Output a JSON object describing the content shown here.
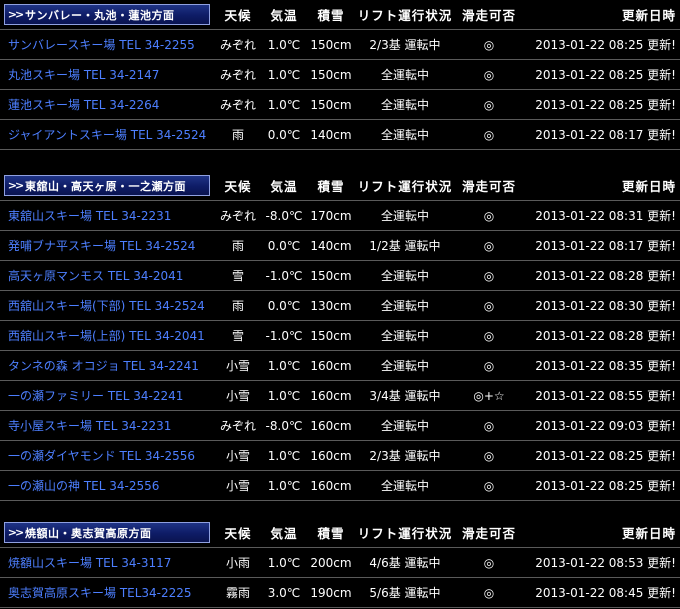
{
  "columns": {
    "weather": "天候",
    "temp": "気温",
    "snow": "積雪",
    "lift": "リフト運行状況",
    "ski": "滑走可否",
    "updated": "更新日時"
  },
  "sections": [
    {
      "title": "サンバレー・丸池・蓮池方面",
      "rows": [
        {
          "name": "サンバレースキー場 TEL 34-2255",
          "weather": "みぞれ",
          "temp": "1.0℃",
          "snow": "150cm",
          "lift": "2/3基 運転中",
          "ski": "◎",
          "updated": "2013-01-22 08:25 更新!"
        },
        {
          "name": "丸池スキー場 TEL 34-2147",
          "weather": "みぞれ",
          "temp": "1.0℃",
          "snow": "150cm",
          "lift": "全運転中",
          "ski": "◎",
          "updated": "2013-01-22 08:25 更新!"
        },
        {
          "name": "蓮池スキー場 TEL 34-2264",
          "weather": "みぞれ",
          "temp": "1.0℃",
          "snow": "150cm",
          "lift": "全運転中",
          "ski": "◎",
          "updated": "2013-01-22 08:25 更新!"
        },
        {
          "name": "ジャイアントスキー場 TEL 34-2524",
          "weather": "雨",
          "temp": "0.0℃",
          "snow": "140cm",
          "lift": "全運転中",
          "ski": "◎",
          "updated": "2013-01-22 08:17 更新!"
        }
      ]
    },
    {
      "title": "東舘山・高天ヶ原・一之瀬方面",
      "rows": [
        {
          "name": "東舘山スキー場 TEL 34-2231",
          "weather": "みぞれ",
          "temp": "-8.0℃",
          "snow": "170cm",
          "lift": "全運転中",
          "ski": "◎",
          "updated": "2013-01-22 08:31 更新!"
        },
        {
          "name": "発哺ブナ平スキー場 TEL 34-2524",
          "weather": "雨",
          "temp": "0.0℃",
          "snow": "140cm",
          "lift": "1/2基 運転中",
          "ski": "◎",
          "updated": "2013-01-22 08:17 更新!"
        },
        {
          "name": "高天ヶ原マンモス TEL 34-2041",
          "weather": "雪",
          "temp": "-1.0℃",
          "snow": "150cm",
          "lift": "全運転中",
          "ski": "◎",
          "updated": "2013-01-22 08:28 更新!"
        },
        {
          "name": "西舘山スキー場(下部) TEL 34-2524",
          "weather": "雨",
          "temp": "0.0℃",
          "snow": "130cm",
          "lift": "全運転中",
          "ski": "◎",
          "updated": "2013-01-22 08:30 更新!"
        },
        {
          "name": "西舘山スキー場(上部) TEL 34-2041",
          "weather": "雪",
          "temp": "-1.0℃",
          "snow": "150cm",
          "lift": "全運転中",
          "ski": "◎",
          "updated": "2013-01-22 08:28 更新!"
        },
        {
          "name": "タンネの森 オコジョ TEL 34-2241",
          "weather": "小雪",
          "temp": "1.0℃",
          "snow": "160cm",
          "lift": "全運転中",
          "ski": "◎",
          "updated": "2013-01-22 08:35 更新!"
        },
        {
          "name": "一の瀬ファミリー TEL 34-2241",
          "weather": "小雪",
          "temp": "1.0℃",
          "snow": "160cm",
          "lift": "3/4基 運転中",
          "ski": "◎+☆",
          "updated": "2013-01-22 08:55 更新!"
        },
        {
          "name": "寺小屋スキー場 TEL 34-2231",
          "weather": "みぞれ",
          "temp": "-8.0℃",
          "snow": "160cm",
          "lift": "全運転中",
          "ski": "◎",
          "updated": "2013-01-22 09:03 更新!"
        },
        {
          "name": "一の瀬ダイヤモンド TEL 34-2556",
          "weather": "小雪",
          "temp": "1.0℃",
          "snow": "160cm",
          "lift": "2/3基 運転中",
          "ski": "◎",
          "updated": "2013-01-22 08:25 更新!"
        },
        {
          "name": "一の瀬山の神 TEL 34-2556",
          "weather": "小雪",
          "temp": "1.0℃",
          "snow": "160cm",
          "lift": "全運転中",
          "ski": "◎",
          "updated": "2013-01-22 08:25 更新!"
        }
      ]
    },
    {
      "title": "焼額山・奥志賀高原方面",
      "rows": [
        {
          "name": "焼額山スキー場 TEL 34-3117",
          "weather": "小雨",
          "temp": "1.0℃",
          "snow": "200cm",
          "lift": "4/6基 運転中",
          "ski": "◎",
          "updated": "2013-01-22 08:53 更新!"
        },
        {
          "name": "奥志賀高原スキー場 TEL34-2225",
          "weather": "霧雨",
          "temp": "3.0℃",
          "snow": "190cm",
          "lift": "5/6基 運転中",
          "ski": "◎",
          "updated": "2013-01-22 08:45 更新!"
        }
      ]
    }
  ]
}
